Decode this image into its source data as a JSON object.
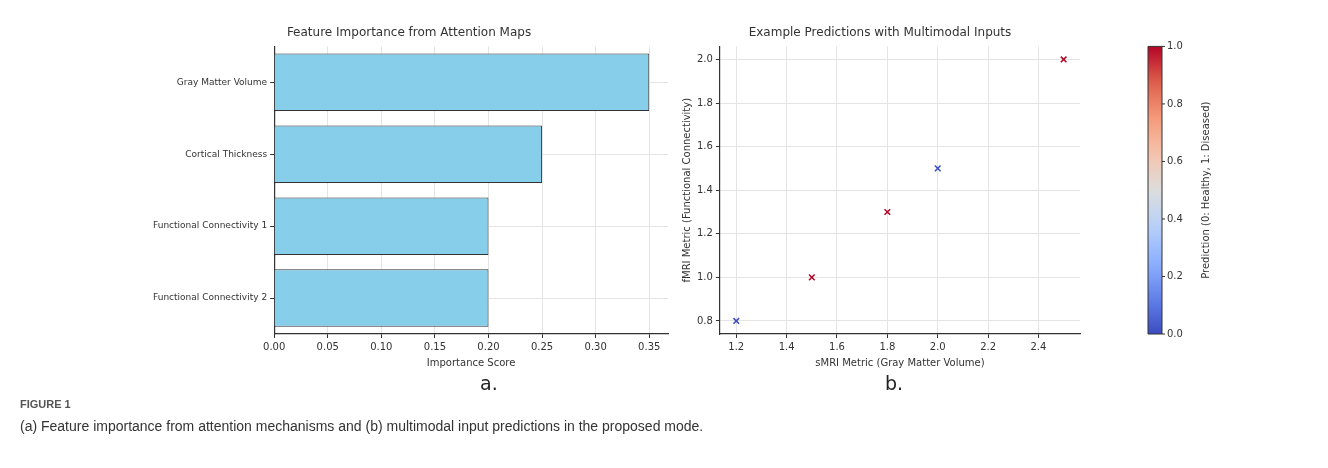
{
  "chart_data": [
    {
      "type": "bar",
      "orientation": "horizontal",
      "title": "Feature Importance from Attention Maps",
      "xlabel": "Importance Score",
      "categories": [
        "Gray Matter Volume",
        "Cortical Thickness",
        "Functional Connectivity 1",
        "Functional Connectivity 2"
      ],
      "values": [
        0.35,
        0.25,
        0.2,
        0.2
      ],
      "color": "#87ceeb",
      "xlim": [
        0,
        0.3675
      ],
      "xticks": [
        {
          "value": 0,
          "label": "0.00"
        },
        0.05,
        {
          "value": 0.1,
          "label": "0.10"
        },
        0.15,
        {
          "value": 0.2,
          "label": "0.20"
        },
        0.25,
        {
          "value": 0.3,
          "label": "0.30"
        },
        0.35
      ],
      "grid": true,
      "legend": false,
      "annotations": [
        "a."
      ]
    },
    {
      "type": "scatter",
      "title": "Example Predictions with Multimodal Inputs",
      "xlabel": "sMRI Metric (Gray Matter Volume)",
      "ylabel": "fMRI Metric (Functional Connectivity)",
      "clabel": "Prediction (0: Healthy, 1: Diseased)",
      "x": [
        1.2,
        1.5,
        1.8,
        2.0,
        2.5
      ],
      "values": [
        0.8,
        1.0,
        1.3,
        1.5,
        2.0
      ],
      "cvalues": [
        0,
        1,
        1,
        0,
        1
      ],
      "marker": "cross",
      "clim": [
        0,
        1
      ],
      "cticks": [
        {
          "value": 0,
          "label": "0.0"
        },
        0.2,
        0.4,
        0.6,
        0.8,
        {
          "value": 1,
          "label": "1.0"
        }
      ],
      "xlim": [
        1.135,
        2.565
      ],
      "ylim": [
        0.74,
        2.06
      ],
      "xticks": [
        1.2,
        1.4,
        1.6,
        1.8,
        {
          "value": 2,
          "label": "2.0"
        },
        2.2,
        2.4
      ],
      "yticks": [
        0.8,
        {
          "value": 1,
          "label": "1.0"
        },
        1.2,
        1.4,
        1.6,
        1.8,
        {
          "value": 2,
          "label": "2.0"
        }
      ],
      "grid": true,
      "legend": false,
      "annotations": [
        "b.",
        "FIGURE 1",
        "(a) Feature importance from attention mechanisms and (b) multimodal input predictions in the proposed mode."
      ]
    }
  ]
}
